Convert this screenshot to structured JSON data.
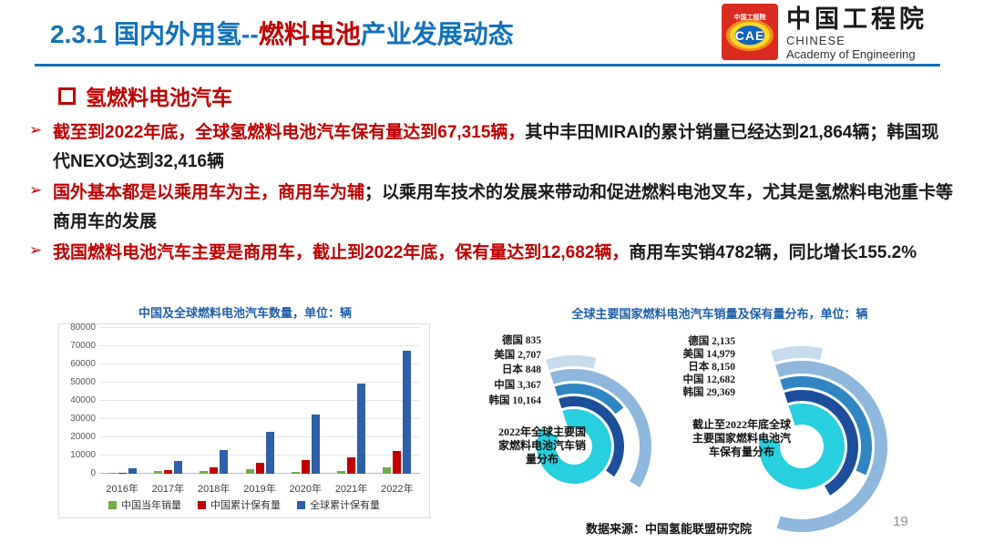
{
  "header": {
    "title_part1": "2.3.1 国内外用氢--",
    "title_part2": "燃料电池",
    "title_part3": "产业发展动态",
    "logo": {
      "badge_top": "中国工程院",
      "badge": "CAE",
      "cn": "中国工程院",
      "en1": "CHINESE",
      "en2": "Academy of Engineering"
    }
  },
  "section_heading": "氢燃料电池汽车",
  "bullets": {
    "marker": "➢",
    "items": [
      {
        "red": "截至到2022年底，全球氢燃料电池汽车保有量达到67,315辆，",
        "black": "其中丰田MIRAI的累计销量已经达到21,864辆；韩国现代NEXO达到32,416辆"
      },
      {
        "red": "国外基本都是以乘用车为主，商用车为辅",
        "black": "；以乘用车技术的发展来带动和促进燃料电池叉车，尤其是氢燃料电池重卡等商用车的发展"
      },
      {
        "red": "我国燃料电池汽车主要是商用车，截止到2022年底，保有量达到12,682辆，",
        "black": "商用车实销4782辆，同比增长155.2%"
      }
    ]
  },
  "chart_data": [
    {
      "type": "bar",
      "title": "中国及全球燃料电池汽车数量，单位：辆",
      "categories": [
        "2016年",
        "2017年",
        "2018年",
        "2019年",
        "2020年",
        "2021年",
        "2022年"
      ],
      "series": [
        {
          "name": "中国当年销量",
          "color": "#70ad47",
          "values": [
            629,
            1275,
            1527,
            2737,
            1177,
            1586,
            3367
          ]
        },
        {
          "name": "中国累计保有量",
          "color": "#c00000",
          "values": [
            700,
            1900,
            3428,
            6175,
            7352,
            8938,
            12682
          ]
        },
        {
          "name": "全球累计保有量",
          "color": "#2e5fa7",
          "values": [
            2900,
            7200,
            12800,
            23000,
            32700,
            49500,
            67315
          ]
        }
      ],
      "ylim": [
        0,
        80000
      ],
      "ytick_step": 10000,
      "grid": true,
      "legend_position": "bottom"
    },
    {
      "type": "radial-bar",
      "title": "全球主要国家燃料电池汽车销量及保有量分布，单位：辆",
      "ring_colors": [
        "#c9dcee",
        "#8fb8de",
        "#2f86c2",
        "#1c4e9b",
        "#27cfdf"
      ],
      "donuts": [
        {
          "caption_lines": [
            "2022年全球主要国",
            "家燃料电池汽车销",
            "量分布"
          ],
          "items": [
            {
              "label": "德国",
              "value": "835",
              "sweep": 32
            },
            {
              "label": "美国",
              "value": "2,707",
              "sweep": 140
            },
            {
              "label": "日本",
              "value": "848",
              "sweep": 70
            },
            {
              "label": "中国",
              "value": "3,367",
              "sweep": 145
            },
            {
              "label": "韩国",
              "value": "10,164",
              "sweep": 318
            }
          ]
        },
        {
          "caption_lines": [
            "截止至2022年底全球",
            "主要国家燃料电池汽",
            "车保有量分布"
          ],
          "items": [
            {
              "label": "德国",
              "value": "2,135",
              "sweep": 30
            },
            {
              "label": "美国",
              "value": "14,979",
              "sweep": 215
            },
            {
              "label": "日本",
              "value": "8,150",
              "sweep": 132
            },
            {
              "label": "中国",
              "value": "12,682",
              "sweep": 168
            },
            {
              "label": "韩国",
              "value": "29,369",
              "sweep": 300
            }
          ]
        }
      ]
    }
  ],
  "footer": {
    "source": "数据来源：中国氢能联盟研究院",
    "page_number": "19"
  },
  "colors": {
    "accent_blue": "#1172ba",
    "accent_red": "#c00000",
    "chart_title_blue": "#1f5fa9"
  }
}
